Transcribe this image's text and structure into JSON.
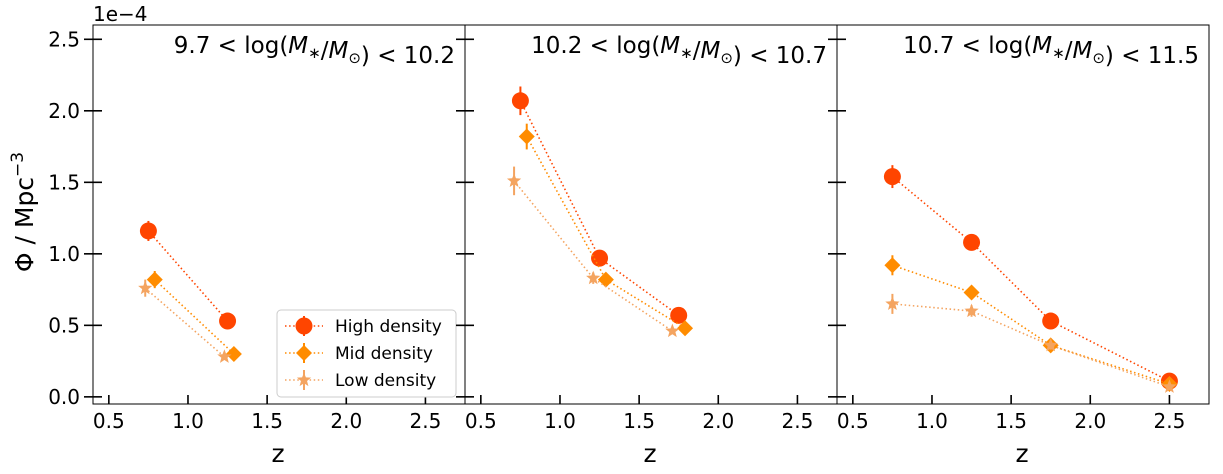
{
  "figure": {
    "offset_text": "1e−4",
    "ylabel_prefix": "Φ / Mpc",
    "ylabel_exp": "−3",
    "xlabel": "z"
  },
  "chart_data": [
    {
      "type": "scatter",
      "title": "9.7 < log(M∗/M⊙) < 10.2",
      "title_parts": [
        "9.7 < log(",
        "M∗",
        "/",
        "M⊙",
        ") < 10.2"
      ],
      "xlim": [
        0.4,
        2.75
      ],
      "ylim": [
        -0.05,
        2.6
      ],
      "xticks": [
        0.5,
        1.0,
        1.5,
        2.0,
        2.5
      ],
      "xtick_labels": [
        "0.5",
        "1.0",
        "1.5",
        "2.0",
        "2.5"
      ],
      "yticks": [
        0.0,
        0.5,
        1.0,
        1.5,
        2.0,
        2.5
      ],
      "ytick_labels": [
        "0.0",
        "0.5",
        "1.0",
        "1.5",
        "2.0",
        "2.5"
      ],
      "xlabel": "z",
      "ylabel": "Φ / Mpc⁻³",
      "y_scale_factor": "1e-4",
      "legend": {
        "placement": "lower-right",
        "entries": [
          "High density",
          "Mid density",
          "Low density"
        ]
      },
      "series": [
        {
          "name": "High density",
          "marker": "circle",
          "color": "#ff4500",
          "x": [
            0.75,
            1.25
          ],
          "y": [
            1.16,
            0.53
          ],
          "yerr": [
            0.07,
            0.03
          ]
        },
        {
          "name": "Mid density",
          "marker": "diamond",
          "color": "#ff8c00",
          "x": [
            0.79,
            1.29
          ],
          "y": [
            0.82,
            0.3
          ],
          "yerr": [
            0.06,
            0.02
          ]
        },
        {
          "name": "Low density",
          "marker": "star",
          "color": "#f4a460",
          "x": [
            0.73,
            1.23
          ],
          "y": [
            0.76,
            0.28
          ],
          "yerr": [
            0.06,
            0.02
          ]
        }
      ]
    },
    {
      "type": "scatter",
      "title": "10.2 < log(M∗/M⊙) < 10.7",
      "title_parts": [
        "10.2 < log(",
        "M∗",
        "/",
        "M⊙",
        ") < 10.7"
      ],
      "xlim": [
        0.4,
        2.75
      ],
      "ylim": [
        -0.05,
        2.6
      ],
      "xticks": [
        0.5,
        1.0,
        1.5,
        2.0,
        2.5
      ],
      "xtick_labels": [
        "0.5",
        "1.0",
        "1.5",
        "2.0",
        "2.5"
      ],
      "yticks": [
        0.0,
        0.5,
        1.0,
        1.5,
        2.0,
        2.5
      ],
      "series": [
        {
          "name": "High density",
          "marker": "circle",
          "color": "#ff4500",
          "x": [
            0.75,
            1.25,
            1.75
          ],
          "y": [
            2.07,
            0.97,
            0.57
          ],
          "yerr": [
            0.1,
            0.04,
            0.03
          ]
        },
        {
          "name": "Mid density",
          "marker": "diamond",
          "color": "#ff8c00",
          "x": [
            0.79,
            1.29,
            1.79
          ],
          "y": [
            1.82,
            0.82,
            0.48
          ],
          "yerr": [
            0.09,
            0.04,
            0.02
          ]
        },
        {
          "name": "Low density",
          "marker": "star",
          "color": "#f4a460",
          "x": [
            0.71,
            1.21,
            1.71
          ],
          "y": [
            1.51,
            0.83,
            0.46
          ],
          "yerr": [
            0.1,
            0.04,
            0.02
          ]
        }
      ]
    },
    {
      "type": "scatter",
      "title": "10.7 < log(M∗/M⊙) < 11.5",
      "title_parts": [
        "10.7 < log(",
        "M∗",
        "/",
        "M⊙",
        ") < 11.5"
      ],
      "xlim": [
        0.4,
        2.75
      ],
      "ylim": [
        -0.05,
        2.6
      ],
      "xticks": [
        0.5,
        1.0,
        1.5,
        2.0,
        2.5
      ],
      "xtick_labels": [
        "0.5",
        "1.0",
        "1.5",
        "2.0",
        "2.5"
      ],
      "yticks": [
        0.0,
        0.5,
        1.0,
        1.5,
        2.0,
        2.5
      ],
      "series": [
        {
          "name": "High density",
          "marker": "circle",
          "color": "#ff4500",
          "x": [
            0.75,
            1.25,
            1.75,
            2.5
          ],
          "y": [
            1.54,
            1.08,
            0.53,
            0.11
          ],
          "yerr": [
            0.08,
            0.05,
            0.03,
            0.02
          ]
        },
        {
          "name": "Mid density",
          "marker": "diamond",
          "color": "#ff8c00",
          "x": [
            0.75,
            1.25,
            1.75,
            2.5
          ],
          "y": [
            0.92,
            0.73,
            0.36,
            0.09
          ],
          "yerr": [
            0.07,
            0.04,
            0.03,
            0.02
          ]
        },
        {
          "name": "Low density",
          "marker": "star",
          "color": "#f4a460",
          "x": [
            0.75,
            1.25,
            1.75,
            2.5
          ],
          "y": [
            0.65,
            0.6,
            0.36,
            0.07
          ],
          "yerr": [
            0.07,
            0.04,
            0.03,
            0.02
          ]
        }
      ]
    }
  ]
}
